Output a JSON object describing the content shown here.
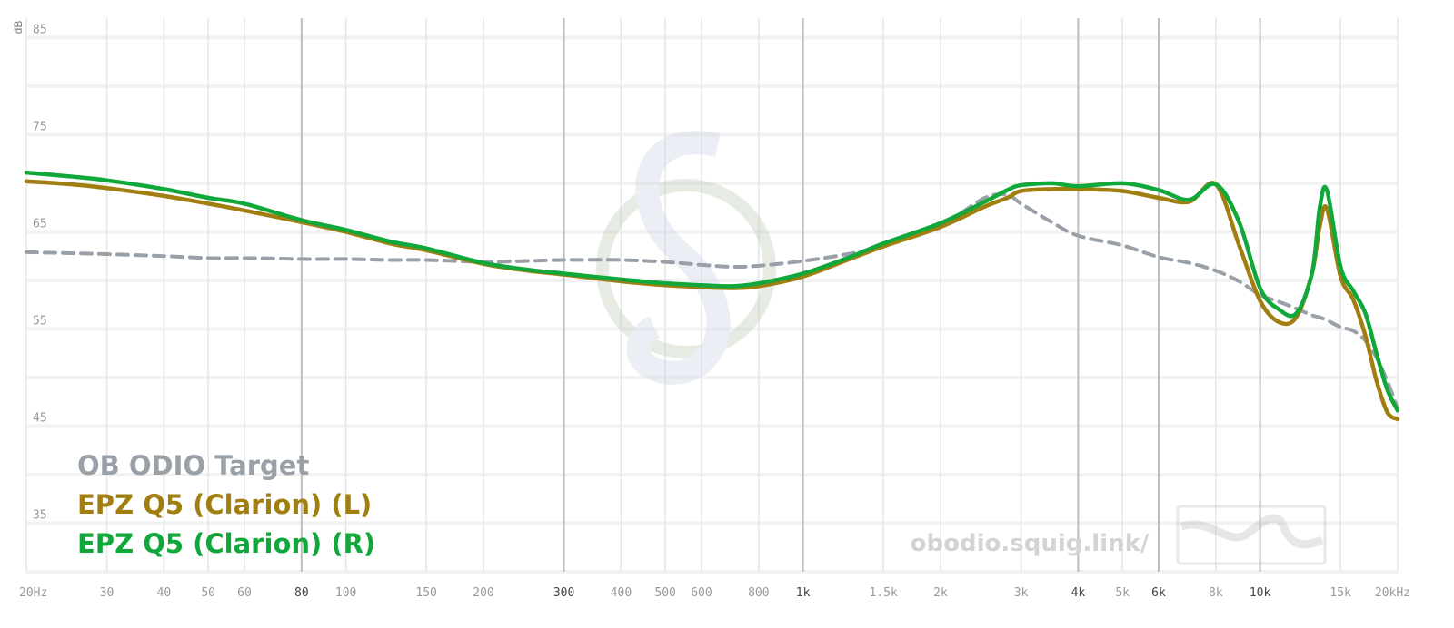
{
  "chart_data": {
    "type": "line",
    "y_label": "dB",
    "watermark": "obodio.squig.link/",
    "x": [
      20,
      25,
      30,
      40,
      50,
      60,
      80,
      100,
      125,
      150,
      200,
      250,
      300,
      400,
      500,
      600,
      700,
      800,
      1000,
      1250,
      1500,
      2000,
      2500,
      2800,
      3000,
      3500,
      4000,
      5000,
      6000,
      7000,
      8000,
      9000,
      10000,
      11000,
      12000,
      13000,
      13500,
      14000,
      15000,
      16000,
      17000,
      18000,
      19000,
      20000
    ],
    "series": [
      {
        "name": "OB ODIO Target",
        "color": "#9aa0a8",
        "dashed": true,
        "values": [
          62.9,
          62.8,
          62.7,
          62.5,
          62.3,
          62.3,
          62.2,
          62.2,
          62.1,
          62.1,
          61.9,
          62.0,
          62.1,
          62.1,
          61.9,
          61.6,
          61.4,
          61.5,
          62.0,
          62.7,
          63.6,
          65.7,
          68.5,
          68.8,
          67.9,
          66.0,
          64.6,
          63.6,
          62.4,
          61.8,
          61.0,
          59.9,
          58.5,
          57.8,
          57.1,
          56.4,
          56.2,
          55.9,
          55.2,
          54.8,
          53.8,
          52.0,
          49.6,
          46.8
        ]
      },
      {
        "name": "EPZ Q5 (Clarion) (L)",
        "color": "#a07f10",
        "dashed": false,
        "values": [
          70.2,
          69.9,
          69.5,
          68.7,
          67.9,
          67.2,
          66.0,
          65.0,
          63.8,
          63.1,
          61.7,
          61.0,
          60.6,
          59.9,
          59.5,
          59.3,
          59.2,
          59.4,
          60.4,
          62.1,
          63.5,
          65.5,
          67.6,
          68.5,
          69.2,
          69.4,
          69.4,
          69.2,
          68.5,
          68.1,
          69.9,
          63.6,
          57.9,
          55.7,
          56.2,
          60.8,
          65.5,
          67.4,
          60.4,
          58.0,
          54.3,
          49.6,
          46.4,
          45.7
        ]
      },
      {
        "name": "EPZ Q5 (Clarion) (R)",
        "color": "#10a83a",
        "dashed": false,
        "values": [
          71.1,
          70.7,
          70.3,
          69.4,
          68.5,
          67.9,
          66.2,
          65.2,
          64.0,
          63.3,
          61.8,
          61.1,
          60.7,
          60.1,
          59.7,
          59.5,
          59.4,
          59.7,
          60.7,
          62.3,
          63.8,
          65.9,
          68.1,
          69.3,
          69.8,
          70.0,
          69.7,
          70.0,
          69.3,
          68.3,
          69.9,
          66.0,
          59.2,
          57.0,
          56.6,
          60.8,
          67.4,
          69.3,
          61.4,
          58.9,
          56.6,
          52.4,
          48.7,
          46.6
        ]
      }
    ],
    "xlog": true,
    "xlim": [
      20,
      20000
    ],
    "xticks": [
      {
        "value": 20,
        "label": "20Hz"
      },
      30,
      40,
      50,
      60,
      80,
      100,
      150,
      200,
      300,
      400,
      500,
      600,
      800,
      {
        "value": 1000,
        "label": "1k"
      },
      {
        "value": 1500,
        "label": "1.5k"
      },
      {
        "value": 2000,
        "label": "2k"
      },
      {
        "value": 3000,
        "label": "3k"
      },
      {
        "value": 4000,
        "label": "4k"
      },
      {
        "value": 5000,
        "label": "5k"
      },
      {
        "value": 6000,
        "label": "6k"
      },
      {
        "value": 8000,
        "label": "8k"
      },
      {
        "value": 10000,
        "label": "10k"
      },
      {
        "value": 15000,
        "label": "15k"
      },
      {
        "value": 20000,
        "label": "20kHz"
      }
    ],
    "xticks_major": [
      80,
      300,
      1000,
      4000,
      6000,
      10000
    ],
    "ylim": [
      30,
      87
    ],
    "yticks": [
      35,
      45,
      55,
      65,
      75,
      85
    ],
    "ygrid_minor": [
      30,
      40,
      50,
      60,
      70,
      80
    ],
    "grid": true,
    "legend": "bottom-left"
  }
}
